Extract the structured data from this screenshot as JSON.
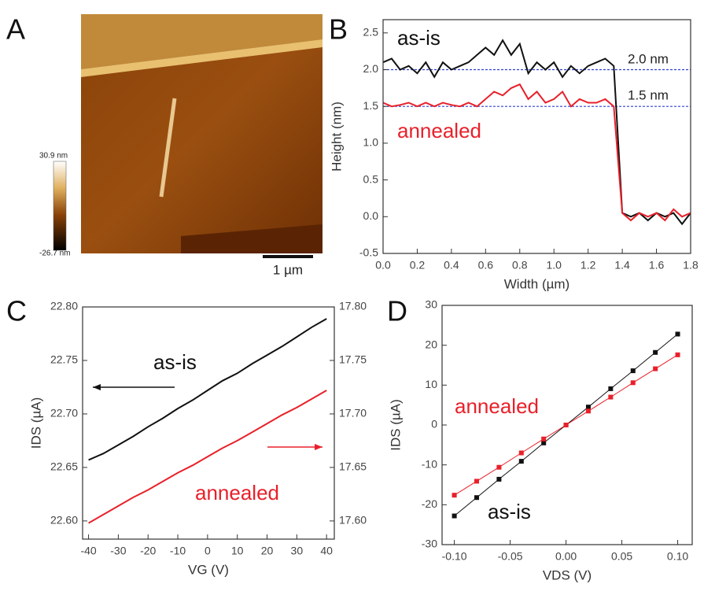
{
  "chart_data": [
    {
      "type": "image",
      "label": "A",
      "colorbar_labels": [
        "30.9 nm",
        "-26.7 nm"
      ],
      "scale_bar": "1 µm"
    },
    {
      "type": "line",
      "label": "B",
      "xlabel": "Width (µm)",
      "ylabel": "Height (nm)",
      "x": [
        0,
        0.05,
        0.1,
        0.15,
        0.2,
        0.25,
        0.3,
        0.35,
        0.4,
        0.45,
        0.5,
        0.55,
        0.6,
        0.65,
        0.7,
        0.75,
        0.8,
        0.85,
        0.9,
        0.95,
        1.0,
        1.05,
        1.1,
        1.15,
        1.2,
        1.25,
        1.3,
        1.35,
        1.4,
        1.45,
        1.5,
        1.55,
        1.6,
        1.65,
        1.7,
        1.75,
        1.8
      ],
      "series": [
        {
          "name": "as-is",
          "color": "#111111",
          "values": [
            2.1,
            2.15,
            2.0,
            2.05,
            1.95,
            2.1,
            1.9,
            2.1,
            2.0,
            2.05,
            2.1,
            2.2,
            2.3,
            2.2,
            2.4,
            2.2,
            2.35,
            1.95,
            2.1,
            2.0,
            2.1,
            1.9,
            2.05,
            1.95,
            2.05,
            2.1,
            2.15,
            2.05,
            0.05,
            0.0,
            0.05,
            -0.05,
            0.05,
            0.0,
            0.05,
            -0.1,
            0.05
          ]
        },
        {
          "name": "annealed",
          "color": "#e8202a",
          "values": [
            1.55,
            1.5,
            1.52,
            1.55,
            1.5,
            1.55,
            1.5,
            1.55,
            1.52,
            1.5,
            1.55,
            1.5,
            1.6,
            1.7,
            1.65,
            1.75,
            1.8,
            1.6,
            1.7,
            1.55,
            1.6,
            1.7,
            1.5,
            1.6,
            1.55,
            1.55,
            1.6,
            1.5,
            0.05,
            -0.05,
            0.05,
            0.0,
            0.05,
            -0.05,
            0.1,
            0.0,
            0.05
          ]
        }
      ],
      "reference_lines": [
        2.0,
        1.5
      ],
      "reference_color": "#3040d0",
      "xlim": [
        0,
        1.8
      ],
      "xticks": [
        {
          "value": 0,
          "label": "0.0"
        },
        0.2,
        0.4,
        0.6,
        0.8,
        {
          "value": 1,
          "label": "1.0"
        },
        1.2,
        1.4,
        1.6,
        1.8
      ],
      "ylim": [
        -0.5,
        2.68
      ],
      "yticks": [
        -0.5,
        {
          "value": 0,
          "label": "0.0"
        },
        0.5,
        {
          "value": 1,
          "label": "1.0"
        },
        1.5,
        {
          "value": 2,
          "label": "2.0"
        },
        2.5
      ],
      "annotations": [
        {
          "text": "as-is",
          "color": "#111111"
        },
        {
          "text": "annealed",
          "color": "#e8202a"
        },
        {
          "text": "2.0 nm",
          "color": "#222222"
        },
        {
          "text": "1.5 nm",
          "color": "#222222"
        }
      ]
    },
    {
      "type": "line",
      "label": "C",
      "xlabel": "VG (V)",
      "ylabel": "IDS (µA)",
      "x": [
        -40,
        -35,
        -30,
        -25,
        -20,
        -15,
        -10,
        -5,
        0,
        5,
        10,
        15,
        20,
        25,
        30,
        35,
        40
      ],
      "series": [
        {
          "name": "as-is",
          "color": "#111111",
          "values": [
            22.657,
            22.663,
            22.671,
            22.679,
            22.688,
            22.696,
            22.705,
            22.713,
            22.722,
            22.731,
            22.738,
            22.747,
            22.755,
            22.763,
            22.772,
            22.781,
            22.789
          ]
        },
        {
          "name": "annealed",
          "color": "#e8202a",
          "axis": "y2",
          "values": [
            17.598,
            17.606,
            17.614,
            17.622,
            17.629,
            17.637,
            17.645,
            17.652,
            17.66,
            17.668,
            17.675,
            17.683,
            17.691,
            17.699,
            17.706,
            17.714,
            17.722
          ]
        }
      ],
      "xlim": [
        -42,
        42.6
      ],
      "xticks": [
        -40,
        -30,
        -20,
        -10,
        0,
        10,
        20,
        30,
        40
      ],
      "ylim": [
        22.583,
        22.8
      ],
      "yticks": [
        {
          "value": 22.6,
          "label": "22.60"
        },
        22.65,
        {
          "value": 22.7,
          "label": "22.70"
        },
        22.75,
        {
          "value": 22.8,
          "label": "22.80"
        }
      ],
      "y2lim": [
        17.583,
        17.8
      ],
      "y2ticks": [
        {
          "value": 17.6,
          "label": "17.60"
        },
        17.65,
        {
          "value": 17.7,
          "label": "17.70"
        },
        17.75,
        {
          "value": 17.8,
          "label": "17.80"
        }
      ],
      "annotations": [
        {
          "text": "as-is",
          "color": "#111111"
        },
        {
          "text": "annealed",
          "color": "#e8202a"
        }
      ]
    },
    {
      "type": "line",
      "label": "D",
      "xlabel": "VDS (V)",
      "ylabel": "IDS (µA)",
      "markers": true,
      "x": [
        -0.1,
        -0.08,
        -0.06,
        -0.04,
        -0.02,
        0,
        0.02,
        0.04,
        0.06,
        0.08,
        0.1
      ],
      "series": [
        {
          "name": "as-is",
          "color": "#111111",
          "values": [
            -22.8,
            -18.2,
            -13.6,
            -9.1,
            -4.5,
            0,
            4.5,
            9.1,
            13.6,
            18.2,
            22.8
          ]
        },
        {
          "name": "annealed",
          "color": "#e8202a",
          "values": [
            -17.6,
            -14.1,
            -10.6,
            -7.0,
            -3.5,
            0,
            3.5,
            7.0,
            10.6,
            14.1,
            17.6
          ]
        }
      ],
      "xlim": [
        -0.111,
        0.113
      ],
      "xticks": [
        {
          "value": -0.1,
          "label": "-0.10"
        },
        -0.05,
        {
          "value": 0,
          "label": "0.00"
        },
        0.05,
        {
          "value": 0.1,
          "label": "0.10"
        }
      ],
      "ylim": [
        -30,
        30
      ],
      "yticks": [
        -30,
        -20,
        -10,
        0,
        10,
        20,
        30
      ],
      "annotations": [
        {
          "text": "annealed",
          "color": "#e8202a"
        },
        {
          "text": "as-is",
          "color": "#111111"
        }
      ]
    }
  ]
}
